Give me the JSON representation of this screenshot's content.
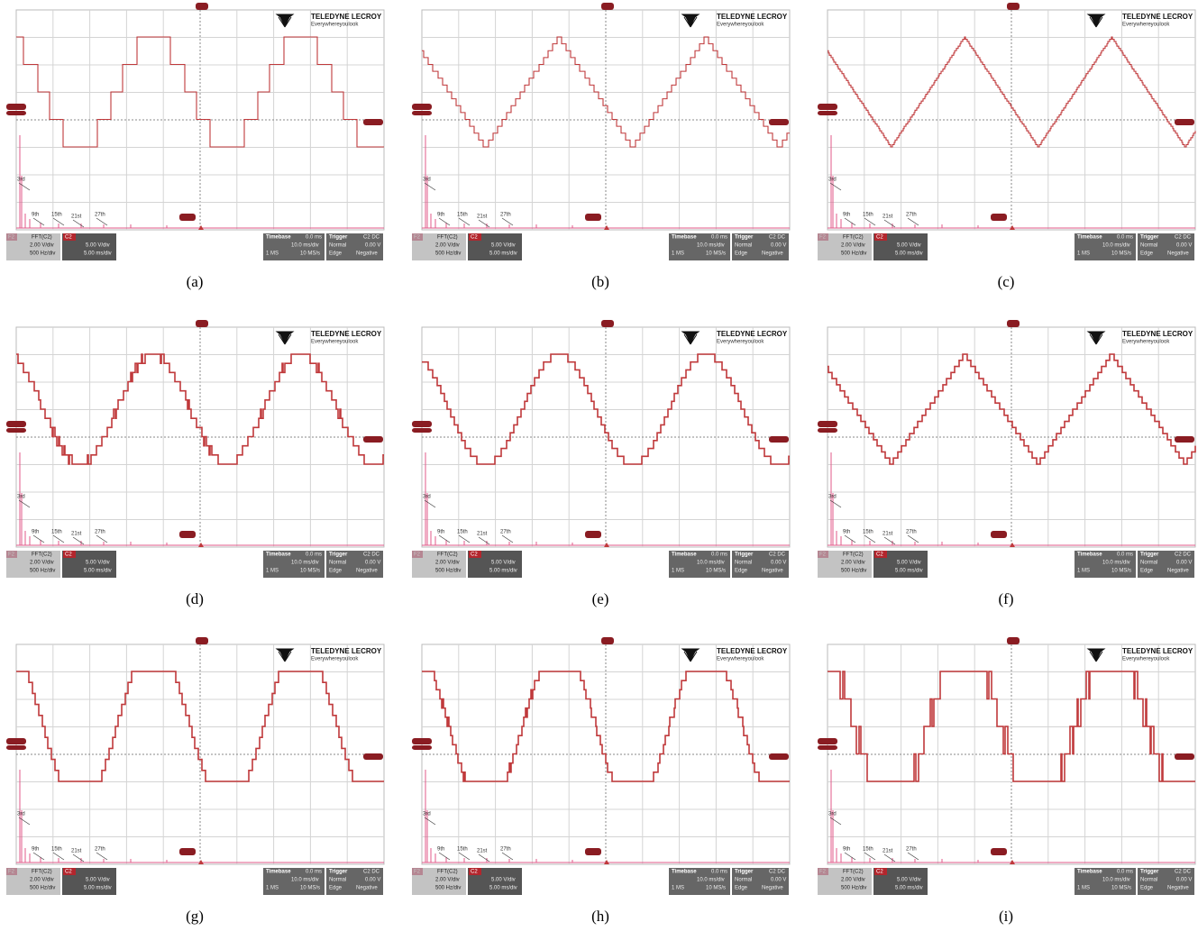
{
  "scope": {
    "brand": "TELEDYNE LECROY",
    "tagline": "Everywhereyoulook",
    "math_tag": "F2",
    "math_source": "FFT(C2)",
    "math_vdiv": "2.00 V/div",
    "math_hdiv": "500 Hz/div",
    "channel_tag": "C2",
    "channel_vdiv": "5.00 V/div",
    "channel_hdiv": "5.00 ms/div",
    "timebase_label": "Timebase",
    "timebase_delay": "0.0 ms",
    "timebase_div": "10.0 ms/div",
    "timebase_points": "1 MS",
    "timebase_rate": "10 MS/s",
    "trigger_label": "Trigger",
    "trigger_channel": "C2 DC",
    "trigger_mode": "Normal",
    "trigger_level": "0.00 V",
    "trigger_type": "Edge",
    "trigger_slope": "Negative",
    "harmonics": [
      "3rd",
      "9th",
      "15th",
      "21st",
      "27th"
    ]
  },
  "panels": [
    {
      "caption": "(a)"
    },
    {
      "caption": "(b)"
    },
    {
      "caption": "(c)"
    },
    {
      "caption": "(d)"
    },
    {
      "caption": "(e)"
    },
    {
      "caption": "(f)"
    },
    {
      "caption": "(g)"
    },
    {
      "caption": "(h)"
    },
    {
      "caption": "(i)"
    }
  ]
}
